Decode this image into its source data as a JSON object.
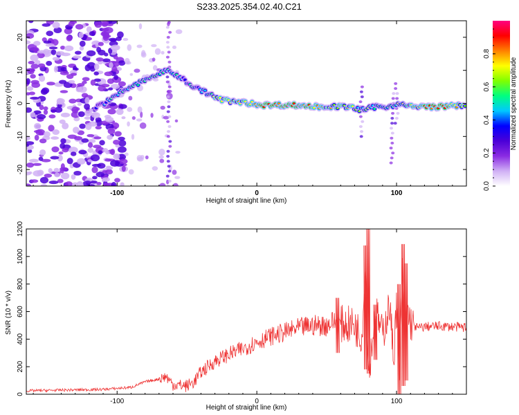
{
  "title": "S233.2025.354.02.40.C21",
  "chart_data": [
    {
      "type": "heatmap",
      "xlabel": "Height of straight line (km)",
      "ylabel": "Frequency (Hz)",
      "xlim": [
        -165,
        150
      ],
      "ylim": [
        -25,
        25
      ],
      "xticks": [
        -100,
        0,
        100
      ],
      "xtick_labels": [
        "-100",
        "0",
        "100"
      ],
      "yticks": [
        -20,
        -10,
        0,
        10,
        20
      ],
      "ytick_labels": [
        "-20",
        "-10",
        "0",
        "10",
        "20"
      ],
      "colorbar": {
        "label": "Normalized spectral amplitude",
        "range": [
          0,
          1
        ],
        "ticks": [
          0.0,
          0.2,
          0.4,
          0.6,
          0.8
        ],
        "tick_labels": [
          "0.0",
          "0.2",
          "0.4",
          "0.6",
          "0.8"
        ],
        "colors": [
          "#ffffff",
          "#d0b0f5",
          "#8a2be2",
          "#4b00d8",
          "#0000ff",
          "#00c8ff",
          "#00ff80",
          "#80ff00",
          "#ffff00",
          "#ff8000",
          "#ff0000",
          "#ff0080"
        ]
      },
      "ridge": {
        "x": [
          -115,
          -105,
          -95,
          -85,
          -75,
          -65,
          -55,
          -45,
          -35,
          -25,
          -15,
          -5,
          5,
          25,
          45,
          65,
          75,
          85,
          95,
          100,
          110,
          130,
          150
        ],
        "y": [
          -1,
          1,
          4,
          6,
          8,
          10,
          8,
          5,
          3,
          1,
          0.5,
          0,
          -0.5,
          -0.5,
          -1,
          -1,
          -2,
          -1,
          -1,
          0,
          -1,
          -1,
          -0.5
        ],
        "amplitude": [
          0.4,
          0.5,
          0.55,
          0.6,
          0.6,
          0.55,
          0.55,
          0.5,
          0.6,
          0.75,
          0.8,
          0.85,
          0.9,
          0.95,
          0.85,
          0.75,
          0.6,
          0.55,
          0.6,
          0.7,
          0.8,
          0.95,
          0.7
        ]
      }
    },
    {
      "type": "line",
      "xlabel": "Height of straight line (km)",
      "ylabel": "SNR (10 * v/v)",
      "xlim": [
        -165,
        150
      ],
      "ylim": [
        0,
        1200
      ],
      "xticks": [
        -100,
        0,
        100
      ],
      "xtick_labels": [
        "-100",
        "0",
        "100"
      ],
      "yticks": [
        0,
        200,
        400,
        600,
        800,
        1000,
        1200
      ],
      "ytick_labels": [
        "0",
        "200",
        "400",
        "600",
        "800",
        "1000",
        "1200"
      ],
      "line_color": "#ee3333",
      "series": [
        {
          "name": "SNR",
          "x": [
            -165,
            -140,
            -110,
            -90,
            -80,
            -70,
            -65,
            -60,
            -50,
            -45,
            -40,
            -35,
            -30,
            -20,
            -10,
            0,
            10,
            20,
            30,
            40,
            50,
            55,
            60,
            70,
            75,
            78,
            80,
            85,
            90,
            95,
            98,
            100,
            102,
            104,
            106,
            108,
            110,
            115,
            120,
            130,
            140,
            150
          ],
          "y": [
            25,
            30,
            35,
            50,
            90,
            110,
            130,
            70,
            60,
            90,
            160,
            200,
            240,
            290,
            330,
            380,
            420,
            450,
            480,
            500,
            500,
            530,
            510,
            500,
            420,
            900,
            150,
            600,
            430,
            650,
            250,
            700,
            100,
            900,
            450,
            600,
            520,
            480,
            490,
            495,
            490,
            485
          ]
        }
      ],
      "spikes": [
        {
          "x": 80,
          "ymin": 150,
          "ymax": 1200
        },
        {
          "x": 78,
          "ymin": 180,
          "ymax": 1080
        },
        {
          "x": 102,
          "ymin": 0,
          "ymax": 800
        },
        {
          "x": 105,
          "ymin": 60,
          "ymax": 1090
        },
        {
          "x": 107,
          "ymin": 100,
          "ymax": 950
        },
        {
          "x": 58,
          "ymin": 300,
          "ymax": 700
        },
        {
          "x": 85,
          "ymin": 250,
          "ymax": 650
        }
      ]
    }
  ]
}
